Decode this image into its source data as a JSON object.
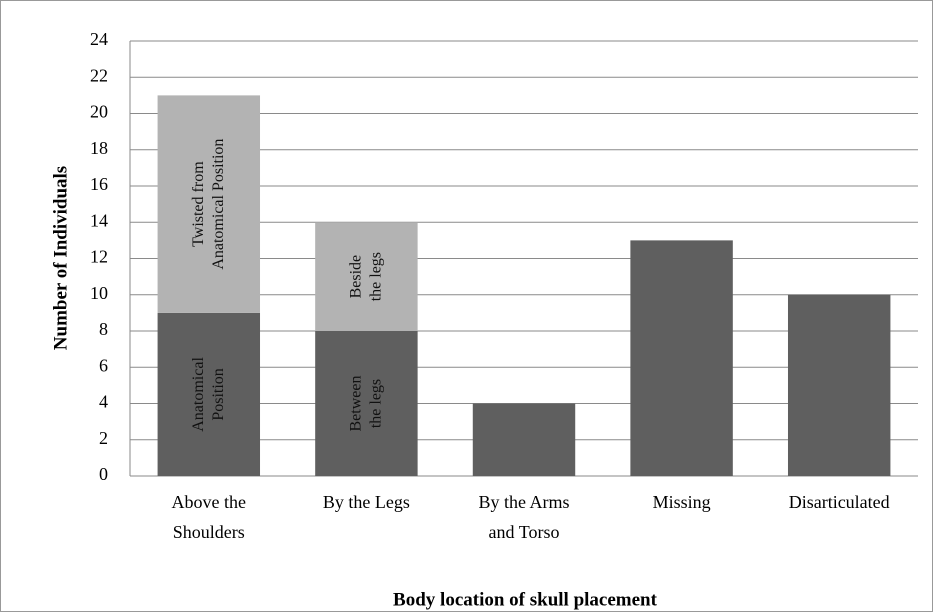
{
  "chart_data": {
    "type": "stacked-bar",
    "x_label": "Body location of skull placement",
    "y_label": "Number of Individuals",
    "categories": [
      "Above the\nShoulders",
      "By the Legs",
      "By the Arms\nand Torso",
      "Missing",
      "Disarticulated"
    ],
    "series": [
      {
        "color": "#5f5f5f",
        "values": [
          9,
          8,
          4,
          13,
          10
        ],
        "segment_labels": [
          "Anatomical\nPosition",
          "Between\nthe legs",
          null,
          null,
          null
        ]
      },
      {
        "color": "#b3b3b3",
        "values": [
          12,
          6,
          null,
          null,
          null
        ],
        "segment_labels": [
          "Twisted from\nAnatomical Position",
          "Beside\nthe legs",
          null,
          null,
          null
        ]
      }
    ],
    "ylim": [
      0,
      24
    ],
    "yticks": [
      0,
      2,
      4,
      6,
      8,
      10,
      12,
      14,
      16,
      18,
      20,
      22,
      24
    ],
    "grid": true
  }
}
